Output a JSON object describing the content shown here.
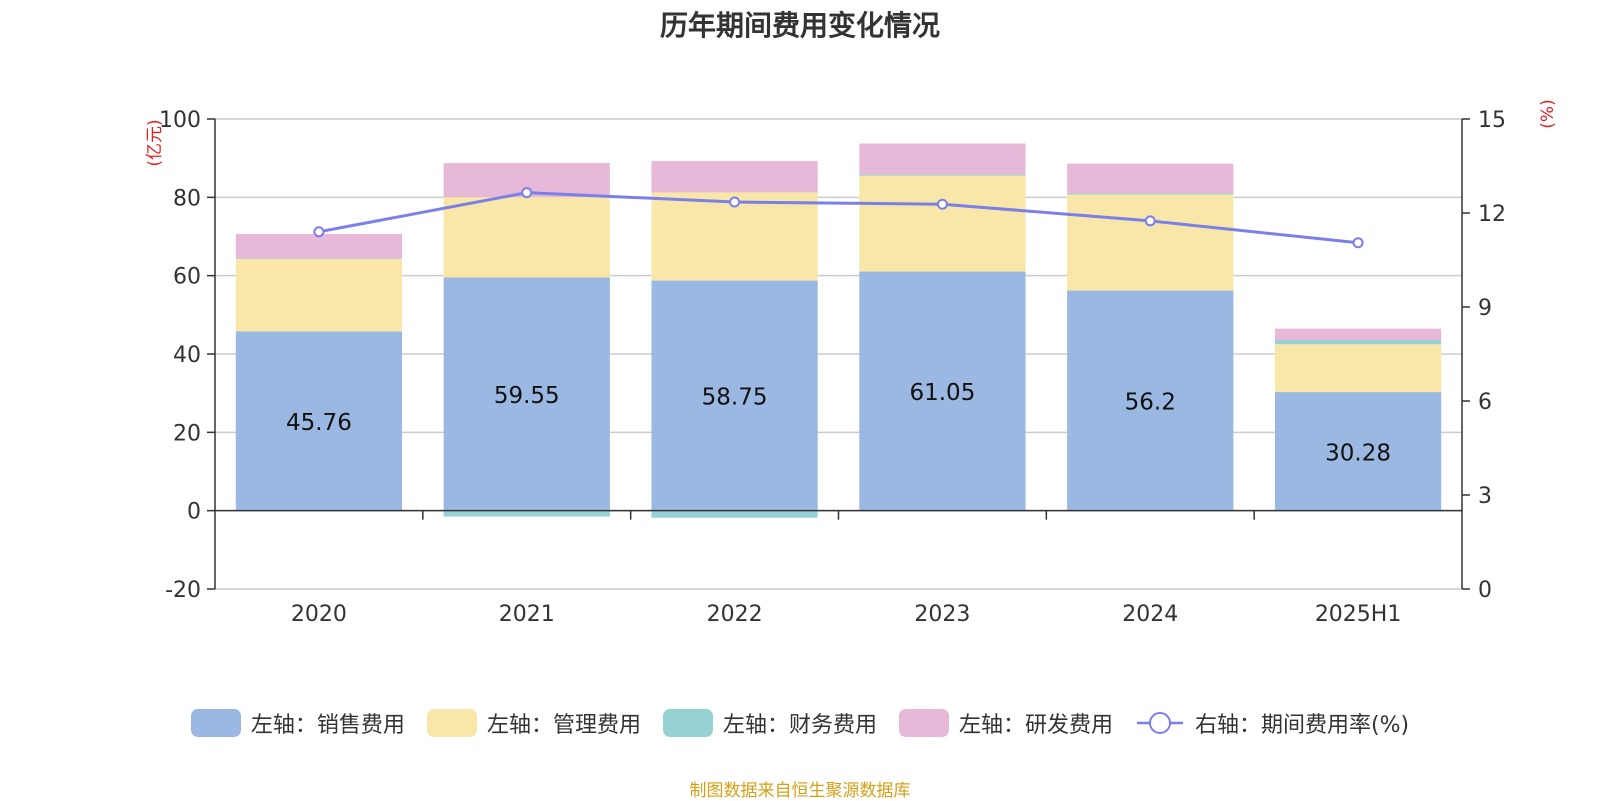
{
  "chart_data": {
    "type": "bar",
    "title": "历年期间费用变化情况",
    "source": "制图数据来自恒生聚源数据库",
    "categories": [
      "2020",
      "2021",
      "2022",
      "2023",
      "2024",
      "2025H1"
    ],
    "left_axis": {
      "unit_label": "(亿元)",
      "ylim": [
        -20,
        100
      ],
      "ticks": [
        -20,
        0,
        20,
        40,
        60,
        80,
        100
      ]
    },
    "right_axis": {
      "unit_label": "(%)",
      "ylim": [
        0,
        15
      ],
      "ticks": [
        0,
        3,
        6,
        9,
        12,
        15
      ]
    },
    "stacked": true,
    "grid": true,
    "legend_position": "bottom",
    "series": [
      {
        "name": "左轴：销售费用",
        "axis": "left",
        "type": "bar",
        "color": "#9bb8e2",
        "values": [
          45.76,
          59.55,
          58.75,
          61.05,
          56.2,
          30.28
        ],
        "labels": [
          "45.76",
          "59.55",
          "58.75",
          "61.05",
          "56.2",
          "30.28"
        ]
      },
      {
        "name": "左轴：管理费用",
        "axis": "left",
        "type": "bar",
        "color": "#f8e7a8",
        "values": [
          18.5,
          20.5,
          22.5,
          24.5,
          24.5,
          12.2
        ]
      },
      {
        "name": "左轴：财务费用",
        "axis": "left",
        "type": "bar",
        "color": "#96d2d4",
        "values": [
          0.2,
          -1.5,
          -1.8,
          0.3,
          0.3,
          1.1
        ]
      },
      {
        "name": "左轴：研发费用",
        "axis": "left",
        "type": "bar",
        "color": "#e8b8d8",
        "values": [
          6.2,
          8.7,
          8.0,
          7.9,
          7.6,
          2.9
        ]
      },
      {
        "name": "右轴：期间费用率(%)",
        "axis": "right",
        "type": "line",
        "color": "#7b7fe8",
        "values": [
          11.4,
          12.65,
          12.35,
          12.28,
          11.75,
          11.05
        ]
      }
    ]
  }
}
